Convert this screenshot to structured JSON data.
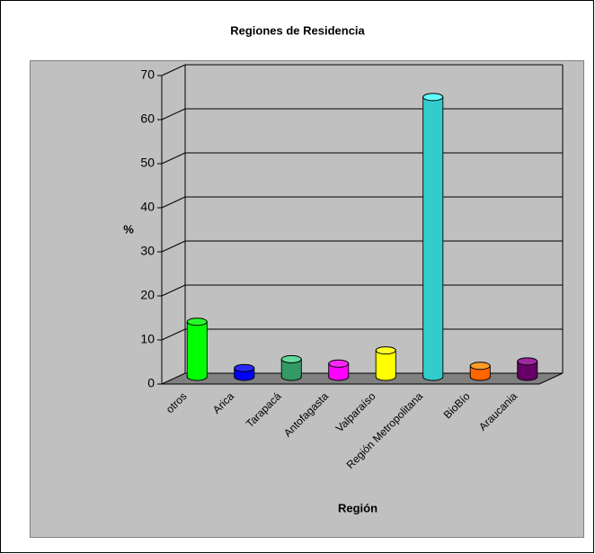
{
  "chart_data": {
    "type": "bar",
    "title": "Regiones de Residencia",
    "x_label": "Región",
    "y_label": "%",
    "categories": [
      "otros",
      "Arica",
      "Tarapacá",
      "Antofagasta",
      "Valparaíso",
      "Región Metropolitana",
      "BioBío",
      "Araucania"
    ],
    "values": [
      12.5,
      2,
      4,
      3,
      6,
      63.5,
      2.5,
      3.5
    ],
    "colors": [
      "#00ff00",
      "#0000ff",
      "#339966",
      "#ff00ff",
      "#ffff00",
      "#33cccc",
      "#ff6600",
      "#660066"
    ],
    "ylim": [
      0,
      70
    ],
    "yticks": [
      0,
      10,
      20,
      30,
      40,
      50,
      60,
      70
    ],
    "grid": true
  }
}
